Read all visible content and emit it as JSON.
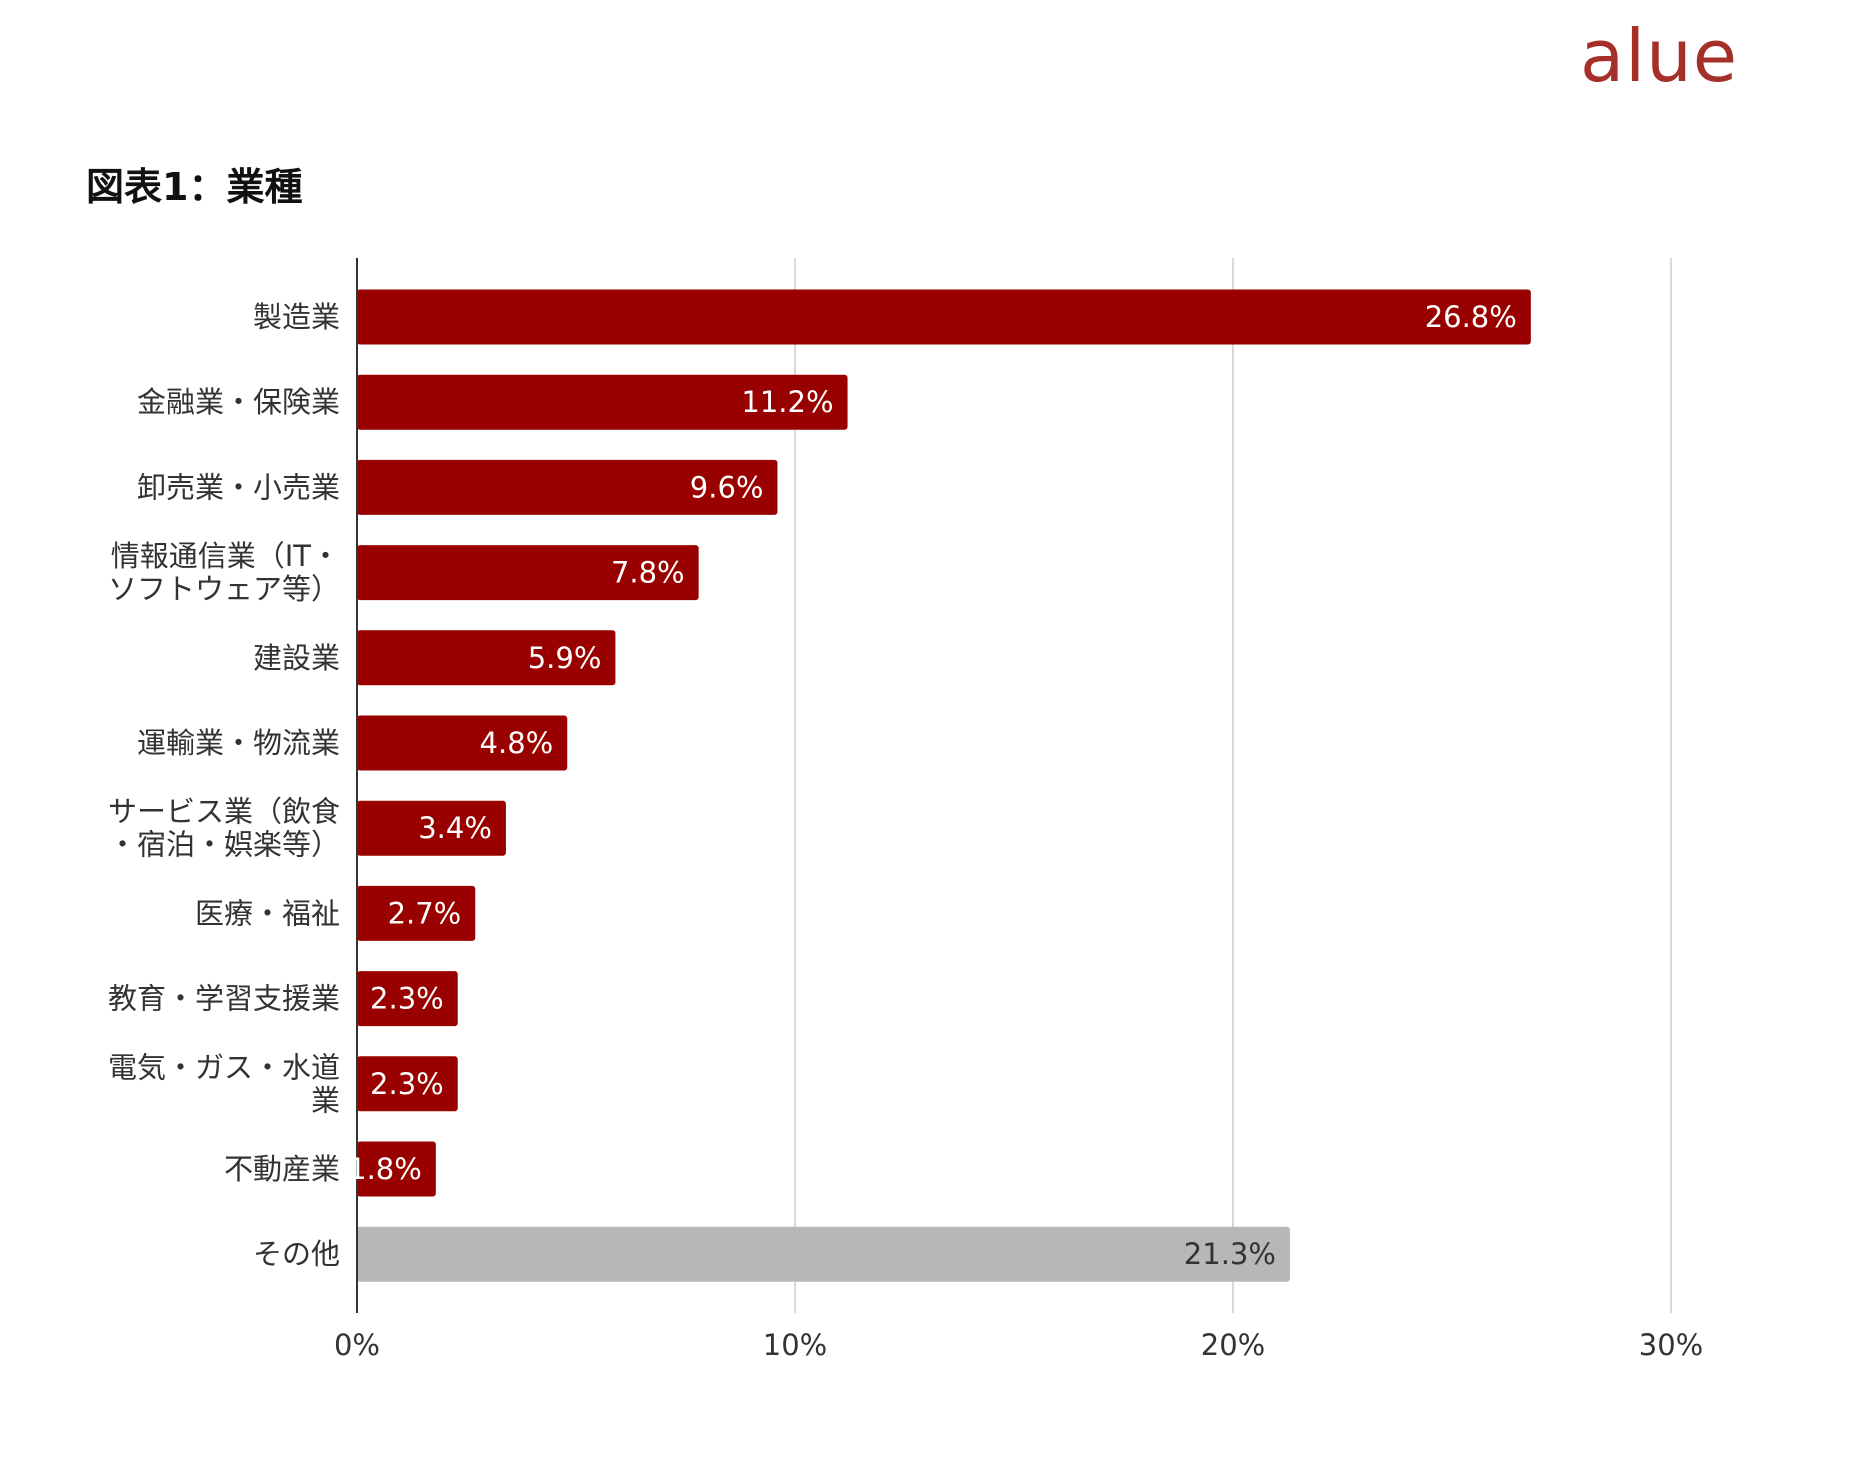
{
  "logo": {
    "text": "alue"
  },
  "chart_data": {
    "type": "bar",
    "orientation": "horizontal",
    "title": "図表1：業種",
    "categories": [
      [
        "製造業"
      ],
      [
        "金融業・保険業"
      ],
      [
        "卸売業・小売業"
      ],
      [
        "情報通信業（IT・",
        "ソフトウェア等）"
      ],
      [
        "建設業"
      ],
      [
        "運輸業・物流業"
      ],
      [
        "サービス業（飲食",
        "・宿泊・娯楽等）"
      ],
      [
        "医療・福祉"
      ],
      [
        "教育・学習支援業"
      ],
      [
        "電気・ガス・水道",
        "業"
      ],
      [
        "不動産業"
      ],
      [
        "その他"
      ]
    ],
    "values": [
      26.8,
      11.2,
      9.6,
      7.8,
      5.9,
      4.8,
      3.4,
      2.7,
      2.3,
      2.3,
      1.8,
      21.3
    ],
    "value_labels": [
      "26.8%",
      "11.2%",
      "9.6%",
      "7.8%",
      "5.9%",
      "4.8%",
      "3.4%",
      "2.7%",
      "2.3%",
      "2.3%",
      "1.8%",
      "21.3%"
    ],
    "bar_colors": [
      "#990000",
      "#990000",
      "#990000",
      "#990000",
      "#990000",
      "#990000",
      "#990000",
      "#990000",
      "#990000",
      "#990000",
      "#990000",
      "#b7b7b7"
    ],
    "value_label_colors": [
      "#ffffff",
      "#ffffff",
      "#ffffff",
      "#ffffff",
      "#ffffff",
      "#ffffff",
      "#ffffff",
      "#ffffff",
      "#ffffff",
      "#ffffff",
      "#ffffff",
      "#333333"
    ],
    "xlim": [
      0,
      30
    ],
    "xticks": [
      0,
      10,
      20,
      30
    ],
    "xtick_labels": [
      "0%",
      "10%",
      "20%",
      "30%"
    ],
    "grid": true,
    "legend": "none"
  }
}
